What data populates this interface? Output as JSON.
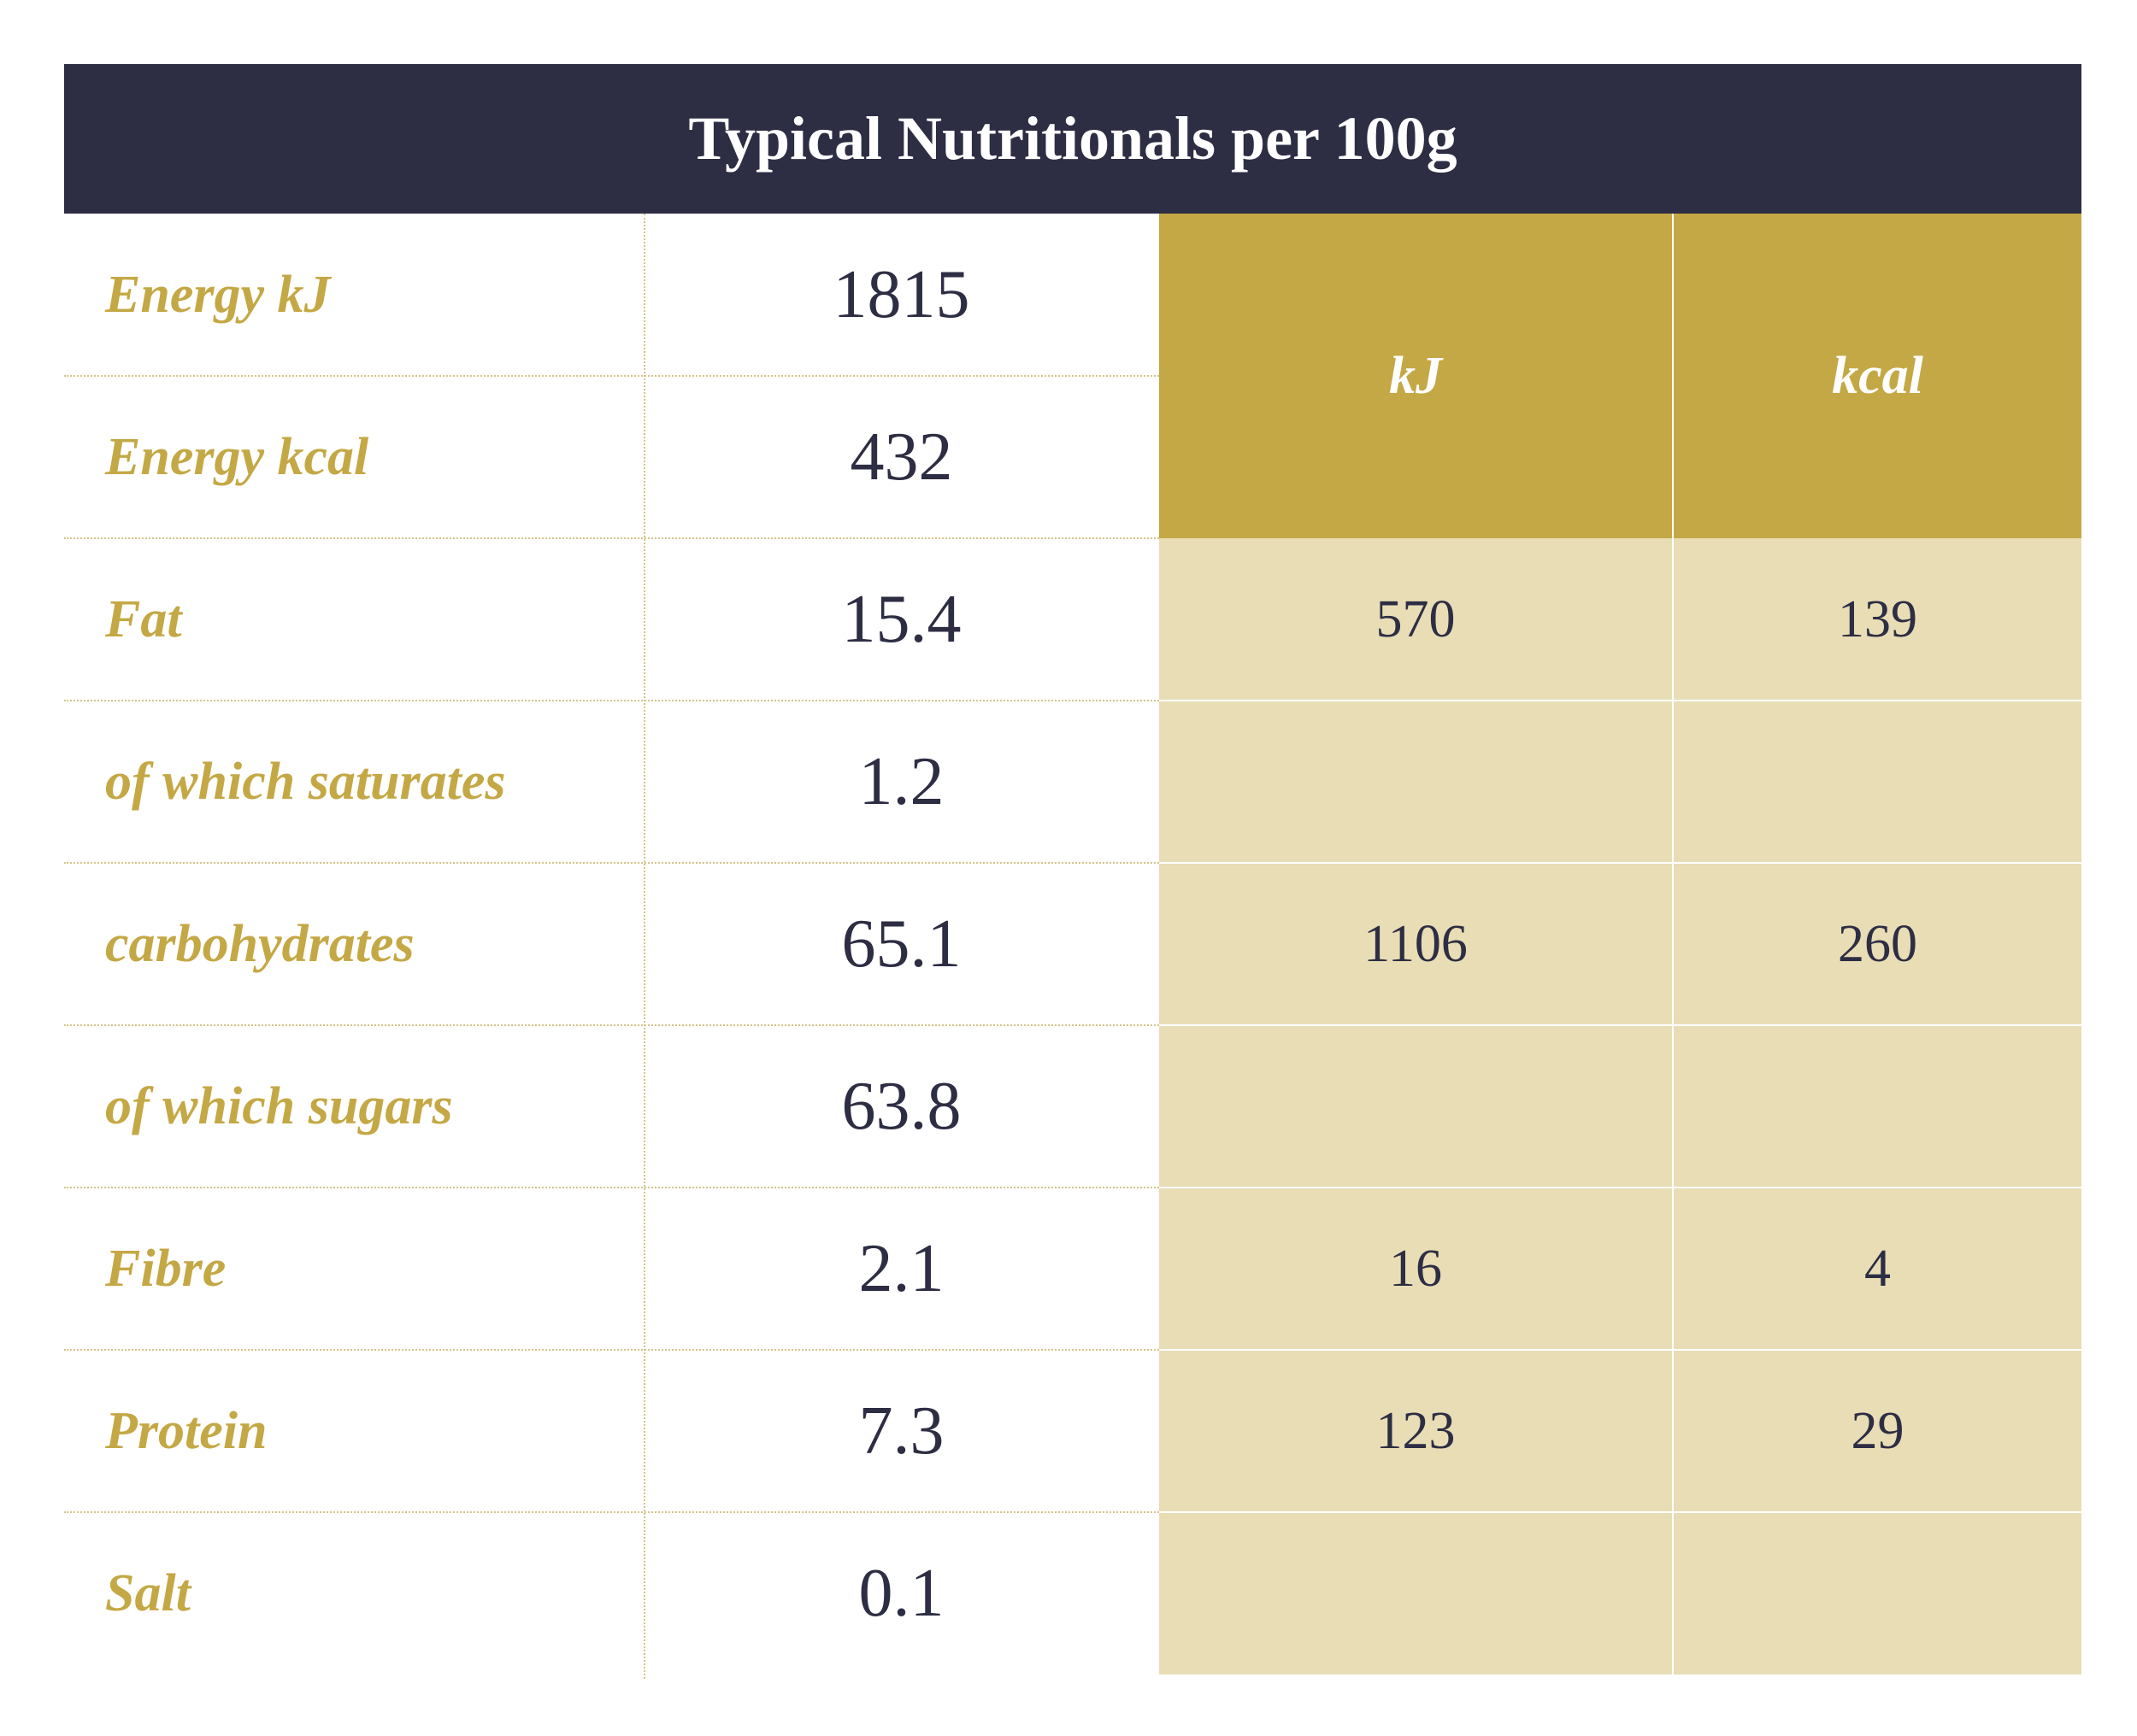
{
  "title": "Typical Nutritionals per 100g",
  "colors": {
    "header_bg": "#2d2d44",
    "gold": "#c4a845",
    "light_gold": "#e8ddb5",
    "text_dark": "#2d2d44"
  },
  "subheaders": {
    "kj": "kJ",
    "kcal": "kcal"
  },
  "rows": [
    {
      "label": "Energy kJ",
      "value": "1815",
      "kj": "",
      "kcal": ""
    },
    {
      "label": "Energy kcal",
      "value": "432",
      "kj": "",
      "kcal": ""
    },
    {
      "label": "Fat",
      "value": "15.4",
      "kj": "570",
      "kcal": "139"
    },
    {
      "label": "of which saturates",
      "value": "1.2",
      "kj": "",
      "kcal": ""
    },
    {
      "label": "carbohydrates",
      "value": "65.1",
      "kj": "1106",
      "kcal": "260"
    },
    {
      "label": "of which sugars",
      "value": "63.8",
      "kj": "",
      "kcal": ""
    },
    {
      "label": "Fibre",
      "value": "2.1",
      "kj": "16",
      "kcal": "4"
    },
    {
      "label": "Protein",
      "value": "7.3",
      "kj": "123",
      "kcal": "29"
    },
    {
      "label": "Salt",
      "value": "0.1",
      "kj": "",
      "kcal": ""
    }
  ]
}
